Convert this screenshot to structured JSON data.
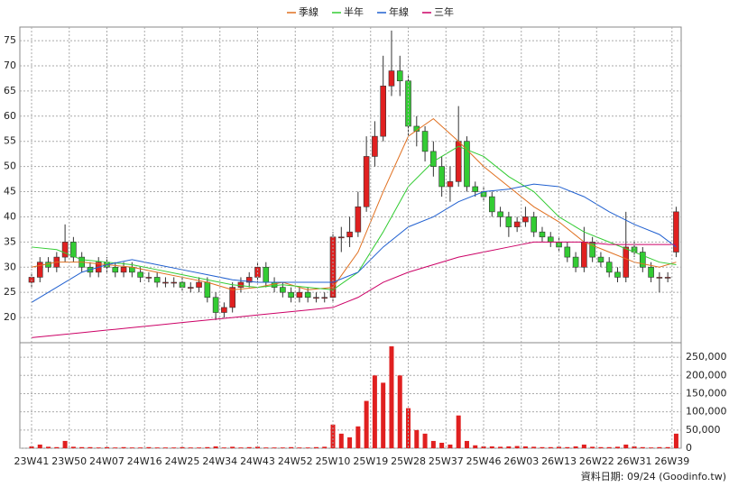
{
  "chart_data": [
    {
      "type": "candlestick",
      "x": [
        0,
        2,
        4,
        6,
        8,
        10,
        12,
        14,
        16,
        18,
        20,
        22,
        24,
        26,
        28,
        30,
        32,
        34,
        36,
        38,
        40,
        42,
        44,
        46,
        48,
        50,
        52,
        54,
        56,
        58,
        60,
        62,
        64,
        66,
        68,
        70,
        72,
        74,
        76,
        78,
        80,
        82,
        84,
        86,
        88,
        90,
        92,
        94,
        96,
        98,
        100,
        102,
        104,
        106,
        108,
        110,
        112,
        114,
        116,
        118,
        120,
        122,
        124,
        126,
        128,
        130,
        132,
        134,
        136,
        138,
        140,
        142,
        144,
        146,
        148,
        150,
        152,
        154
      ],
      "open": [
        27,
        28,
        31,
        30,
        32,
        35,
        32,
        30,
        29,
        31,
        30,
        29,
        30,
        29,
        28,
        28,
        27,
        27,
        27,
        26,
        26,
        27,
        24,
        21,
        22,
        26,
        27,
        28,
        30,
        27,
        26,
        25,
        24,
        25,
        24,
        24,
        24,
        36,
        36,
        37,
        42,
        52,
        56,
        66,
        69,
        67,
        58,
        57,
        53,
        50,
        46,
        47,
        55,
        46,
        45,
        44,
        41,
        40,
        38,
        39,
        40,
        37,
        36,
        35,
        34,
        32,
        30,
        35,
        32,
        31,
        29,
        28,
        34,
        33,
        30,
        28,
        28,
        33
      ],
      "high": [
        29,
        32,
        32,
        33,
        38.5,
        36,
        33,
        31,
        32,
        32,
        31,
        31,
        31,
        30,
        29,
        29,
        28,
        28,
        28,
        27,
        28,
        28,
        25,
        23,
        27,
        28,
        29,
        31,
        31,
        28,
        27,
        26,
        26,
        26,
        25,
        25,
        37,
        38,
        40,
        45,
        56,
        59,
        72,
        77,
        72,
        68,
        60,
        58,
        55,
        52,
        50,
        62,
        56,
        47,
        46,
        45,
        42,
        41,
        40,
        42,
        41,
        38,
        37,
        36,
        35,
        33,
        38,
        36,
        33,
        32,
        30,
        41,
        35,
        34,
        31,
        29,
        29,
        42
      ],
      "low": [
        26,
        27,
        29,
        29,
        31,
        31,
        29,
        28,
        28,
        29,
        28,
        28,
        28,
        27,
        27,
        26,
        26,
        26,
        25,
        25,
        25,
        23,
        19.5,
        20,
        21,
        25,
        26,
        27,
        26,
        25,
        24,
        23,
        23,
        23,
        23,
        23,
        23,
        33,
        34,
        36,
        41,
        50,
        55,
        64,
        64,
        56,
        54,
        51,
        48,
        44,
        43,
        46,
        45,
        44,
        43,
        40,
        38,
        36,
        37,
        38,
        36,
        35,
        34,
        33,
        31,
        29,
        29,
        31,
        30,
        28,
        27,
        27,
        32,
        29,
        27,
        25,
        27,
        32
      ],
      "close": [
        28,
        31,
        30,
        32,
        35,
        32,
        30,
        29,
        31,
        30,
        29,
        30,
        29,
        28,
        28,
        27,
        27,
        27,
        26,
        26,
        27,
        24,
        21,
        22,
        26,
        27,
        28,
        30,
        27,
        26,
        25,
        24,
        25,
        24,
        24,
        24,
        36,
        36,
        37,
        42,
        52,
        56,
        66,
        69,
        67,
        58,
        57,
        53,
        50,
        46,
        47,
        55,
        46,
        45,
        44,
        41,
        40,
        38,
        39,
        40,
        37,
        36,
        35,
        34,
        32,
        30,
        35,
        32,
        31,
        29,
        28,
        34,
        33,
        30,
        28,
        28,
        28,
        41
      ],
      "up_color": "#e02020",
      "down_color": "#33cc33",
      "series": [
        {
          "name": "季線",
          "color": "#e07020",
          "x": [
            0,
            6,
            12,
            18,
            24,
            30,
            36,
            42,
            48,
            54,
            60,
            66,
            72,
            78,
            84,
            90,
            96,
            102,
            108,
            114,
            120,
            126,
            132,
            138,
            144,
            150,
            154
          ],
          "values": [
            30,
            31,
            31,
            30.5,
            30,
            29,
            28,
            27,
            25.5,
            26,
            27,
            25.5,
            26,
            33,
            45,
            56,
            59.5,
            55,
            50,
            46,
            42,
            39,
            35,
            33,
            31,
            30,
            31
          ]
        },
        {
          "name": "半年",
          "color": "#33cc33",
          "x": [
            0,
            6,
            12,
            18,
            24,
            30,
            36,
            42,
            48,
            54,
            60,
            66,
            72,
            78,
            84,
            90,
            96,
            102,
            108,
            114,
            120,
            126,
            132,
            138,
            144,
            150,
            154
          ],
          "values": [
            34,
            33.5,
            31.5,
            31,
            30.5,
            29.5,
            28.5,
            27.5,
            26.5,
            26,
            26.5,
            26,
            25.5,
            29,
            37,
            46,
            51,
            54,
            52,
            48,
            45,
            40,
            37,
            35,
            33,
            31,
            30.5
          ]
        },
        {
          "name": "年線",
          "color": "#2060d0",
          "x": [
            0,
            6,
            12,
            18,
            24,
            30,
            36,
            42,
            48,
            54,
            60,
            66,
            72,
            78,
            84,
            90,
            96,
            102,
            108,
            114,
            120,
            126,
            132,
            138,
            144,
            150,
            154
          ],
          "values": [
            23,
            26,
            29,
            30.5,
            31.5,
            30.5,
            29.5,
            28.5,
            27.5,
            27,
            27,
            27,
            27,
            29,
            34,
            38,
            40,
            43,
            45,
            45.5,
            46.5,
            46,
            44,
            41,
            38.5,
            36.5,
            34
          ]
        },
        {
          "name": "三年",
          "color": "#cc0066",
          "x": [
            0,
            6,
            12,
            18,
            24,
            30,
            36,
            42,
            48,
            54,
            60,
            66,
            72,
            78,
            84,
            90,
            96,
            102,
            108,
            114,
            120,
            126,
            132,
            138,
            144,
            150,
            154
          ],
          "values": [
            16,
            16.5,
            17,
            17.5,
            18,
            18.5,
            19,
            19.5,
            20,
            20.5,
            21,
            21.5,
            22,
            24,
            27,
            29,
            30.5,
            32,
            33,
            34,
            35,
            35,
            35,
            34.5,
            34.5,
            34.5,
            34.5
          ]
        }
      ],
      "xlim": [
        -2.8,
        155.2
      ],
      "ylim": [
        15,
        77.7
      ],
      "yticks": [
        20,
        25,
        30,
        35,
        40,
        45,
        50,
        55,
        60,
        65,
        70,
        75
      ],
      "grid": true
    },
    {
      "type": "bar",
      "x": [
        0,
        2,
        4,
        6,
        8,
        10,
        12,
        14,
        16,
        18,
        20,
        22,
        24,
        26,
        28,
        30,
        32,
        34,
        36,
        38,
        40,
        42,
        44,
        46,
        48,
        50,
        52,
        54,
        56,
        58,
        60,
        62,
        64,
        66,
        68,
        70,
        72,
        74,
        76,
        78,
        80,
        82,
        84,
        86,
        88,
        90,
        92,
        94,
        96,
        98,
        100,
        102,
        104,
        106,
        108,
        110,
        112,
        114,
        116,
        118,
        120,
        122,
        124,
        126,
        128,
        130,
        132,
        134,
        136,
        138,
        140,
        142,
        144,
        146,
        148,
        150,
        152,
        154
      ],
      "values": [
        5000,
        10000,
        4000,
        3000,
        20000,
        4000,
        3000,
        3000,
        2000,
        3000,
        2000,
        3000,
        2000,
        2000,
        3000,
        2000,
        2000,
        2000,
        3000,
        2000,
        2000,
        3000,
        5000,
        2000,
        4000,
        2000,
        3000,
        4000,
        2000,
        2000,
        2000,
        3000,
        2000,
        2000,
        3000,
        4000,
        65000,
        40000,
        30000,
        60000,
        130000,
        200000,
        180000,
        280000,
        200000,
        110000,
        50000,
        40000,
        20000,
        15000,
        10000,
        90000,
        20000,
        8000,
        5000,
        5000,
        4000,
        5000,
        6000,
        5000,
        4000,
        3000,
        3000,
        4000,
        3000,
        5000,
        10000,
        4000,
        3000,
        3000,
        4000,
        10000,
        5000,
        3000,
        2000,
        3000,
        3000,
        40000
      ],
      "color": "#e02020",
      "xlim": [
        -2.8,
        155.2
      ],
      "ylim": [
        0,
        290000
      ],
      "xticks": [
        {
          "value": 0,
          "label": "23W41"
        },
        {
          "value": 9,
          "label": "23W50"
        },
        {
          "value": 18,
          "label": "24W07"
        },
        {
          "value": 27,
          "label": "24W16"
        },
        {
          "value": 36,
          "label": "24W25"
        },
        {
          "value": 45,
          "label": "24W34"
        },
        {
          "value": 54,
          "label": "24W43"
        },
        {
          "value": 63,
          "label": "24W52"
        },
        {
          "value": 72,
          "label": "25W10"
        },
        {
          "value": 81,
          "label": "25W19"
        },
        {
          "value": 90,
          "label": "25W28"
        },
        {
          "value": 99,
          "label": "25W37"
        },
        {
          "value": 108,
          "label": "25W46"
        },
        {
          "value": 117,
          "label": "26W03"
        },
        {
          "value": 126,
          "label": "26W13"
        },
        {
          "value": 135,
          "label": "26W22"
        },
        {
          "value": 144,
          "label": "26W31"
        },
        {
          "value": 153,
          "label": "26W39"
        }
      ],
      "yticks": [
        0,
        {
          "value": 50000,
          "label": "50,000"
        },
        {
          "value": 100000,
          "label": "100,000"
        },
        {
          "value": 150000,
          "label": "150,000"
        },
        {
          "value": 200000,
          "label": "200,000"
        },
        {
          "value": 250000,
          "label": "250,000"
        }
      ],
      "grid": true,
      "source_note": "資料日期: 09/24 (Goodinfo.tw)"
    }
  ]
}
